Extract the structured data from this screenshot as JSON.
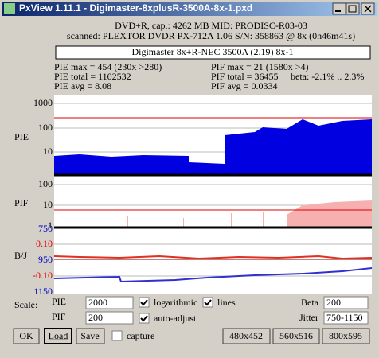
{
  "window": {
    "title": "PxView 1.11.1  -  Digimaster-8xplusR-3500A-8x-1.pxd"
  },
  "header": {
    "line1": "DVD+R, cap.: 4262 MB MID: PRODISC-R03-03",
    "line2": "scanned: PLEXTOR DVDR PX-712A 1.06 S/N: 358863 @ 8x (0h46m41s)",
    "label": "Digimaster 8x+R-NEC 3500A (2.19) 8x-1"
  },
  "stats": {
    "pie_max": "PIE max = 454 (230x >280)",
    "pif_max": "PIF max = 21 (1580x >4)",
    "pie_total": "PIE total = 1102532",
    "pif_total": "PIF total = 36455",
    "beta": "beta: -2.1% .. 2.3%",
    "pie_avg": "PIE avg = 8.08",
    "pif_avg": "PIF avg = 0.0334"
  },
  "plots": {
    "pie": {
      "label": "PIE",
      "ticks": [
        "1000",
        "100",
        "10"
      ]
    },
    "pif": {
      "label": "PIF",
      "ticks": [
        "100",
        "10",
        "1"
      ]
    },
    "bj": {
      "label": "B/J",
      "ticks": [
        "750",
        "0.10",
        "950",
        "-0.10",
        "1150"
      ]
    }
  },
  "controls": {
    "scale": "Scale:",
    "pie": "PIE",
    "pie_value": "2000",
    "pif": "PIF",
    "pif_value": "200",
    "logarithmic": "logarithmic",
    "lines": "lines",
    "auto_adjust": "auto-adjust",
    "beta": "Beta",
    "beta_value": "200",
    "jitter": "Jitter",
    "jitter_value": "750-1150",
    "capture": "capture"
  },
  "buttons": {
    "ok": "OK",
    "load": "Load",
    "save": "Save",
    "s1": "480x452",
    "s2": "560x516",
    "s3": "800x595"
  }
}
